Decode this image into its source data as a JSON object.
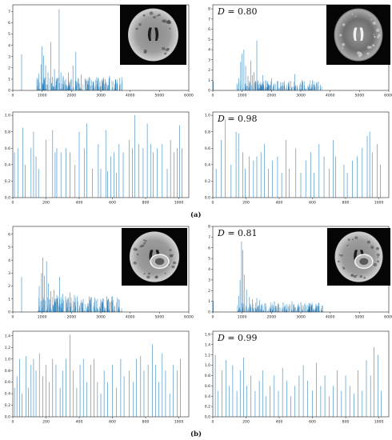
{
  "figure_labels": {
    "a": "(a)",
    "b": "(b)"
  },
  "d_prefix": "D",
  "d_equals": " = ",
  "chart_data": [
    {
      "id": "a-top-left",
      "type": "bar",
      "xlim": [
        0,
        6000
      ],
      "ylim": [
        0,
        7.6
      ],
      "xticks": [
        "0",
        "1000",
        "2000",
        "3000",
        "4000",
        "5000",
        "6000"
      ],
      "yticks": [
        "0",
        "1",
        "2",
        "3",
        "4",
        "5",
        "6",
        "7"
      ],
      "d_value": "",
      "image": "mri-flair-axial",
      "spikes": [
        [
          300,
          3.2
        ],
        [
          880,
          1.5
        ],
        [
          960,
          2.3
        ],
        [
          1000,
          3.9
        ],
        [
          1050,
          3.1
        ],
        [
          1120,
          2.2
        ],
        [
          1200,
          1.6
        ],
        [
          1300,
          4.3
        ],
        [
          1350,
          1.2
        ],
        [
          1420,
          1.9
        ],
        [
          1500,
          1.1
        ],
        [
          1580,
          7.2
        ],
        [
          1640,
          1.6
        ],
        [
          1720,
          1.3
        ],
        [
          1800,
          1.0
        ],
        [
          1900,
          1.6
        ],
        [
          2050,
          2.2
        ],
        [
          2150,
          3.4
        ],
        [
          2230,
          1.1
        ],
        [
          2330,
          1.4
        ],
        [
          2500,
          0.9
        ],
        [
          2600,
          1.2
        ],
        [
          2750,
          0.8
        ],
        [
          2900,
          1.0
        ],
        [
          3150,
          1.0
        ],
        [
          3300,
          1.3
        ],
        [
          3500,
          1.0
        ],
        [
          3650,
          1.1
        ]
      ],
      "dense": {
        "range": [
          800,
          3750
        ],
        "count": 230,
        "max": 1.2,
        "seed": 11
      }
    },
    {
      "id": "a-top-right",
      "type": "bar",
      "xlim": [
        0,
        6000
      ],
      "ylim": [
        0,
        8.4
      ],
      "xticks": [
        "0",
        "1000",
        "2000",
        "3000",
        "4000",
        "5000",
        "6000"
      ],
      "yticks": [
        "0",
        "1",
        "2",
        "3",
        "4",
        "5",
        "6",
        "7",
        "8"
      ],
      "d_value": "0.80",
      "image": "mri-t2-axial",
      "spikes": [
        [
          20,
          0.9
        ],
        [
          880,
          1.2
        ],
        [
          950,
          2.8
        ],
        [
          1000,
          3.6
        ],
        [
          1060,
          4.0
        ],
        [
          1120,
          2.4
        ],
        [
          1200,
          1.4
        ],
        [
          1300,
          2.9
        ],
        [
          1350,
          1.5
        ],
        [
          1400,
          1.8
        ],
        [
          1500,
          4.9
        ],
        [
          1550,
          1.0
        ],
        [
          1700,
          1.5
        ],
        [
          1800,
          1.0
        ],
        [
          2000,
          1.2
        ],
        [
          2200,
          0.9
        ],
        [
          2400,
          0.8
        ],
        [
          2800,
          1.6
        ],
        [
          3050,
          1.0
        ],
        [
          3400,
          1.0
        ],
        [
          3600,
          0.9
        ]
      ],
      "dense": {
        "range": [
          800,
          3750
        ],
        "count": 230,
        "max": 1.0,
        "seed": 23
      }
    },
    {
      "id": "a-bottom-left",
      "type": "bar",
      "xlim": [
        0,
        1060
      ],
      "ylim": [
        0,
        1.04
      ],
      "xticks": [
        "0",
        "200",
        "400",
        "600",
        "800",
        "1000"
      ],
      "yticks": [
        "0.0",
        "0.2",
        "0.4",
        "0.6",
        "0.8",
        "1.0"
      ],
      "d_value": "",
      "image": "",
      "spikes": [
        [
          10,
          0.55
        ],
        [
          30,
          0.6
        ],
        [
          60,
          0.85
        ],
        [
          75,
          0.4
        ],
        [
          110,
          0.6
        ],
        [
          125,
          0.8
        ],
        [
          140,
          0.5
        ],
        [
          155,
          0.35
        ],
        [
          200,
          0.7
        ],
        [
          240,
          0.82
        ],
        [
          255,
          0.55
        ],
        [
          265,
          0.6
        ],
        [
          290,
          0.55
        ],
        [
          320,
          0.6
        ],
        [
          345,
          0.55
        ],
        [
          375,
          0.4
        ],
        [
          400,
          0.8
        ],
        [
          430,
          0.6
        ],
        [
          445,
          0.9
        ],
        [
          480,
          0.35
        ],
        [
          515,
          0.65
        ],
        [
          530,
          0.35
        ],
        [
          560,
          0.82
        ],
        [
          570,
          0.32
        ],
        [
          590,
          0.5
        ],
        [
          610,
          0.55
        ],
        [
          625,
          0.3
        ],
        [
          640,
          0.65
        ],
        [
          665,
          0.55
        ],
        [
          700,
          0.7
        ],
        [
          720,
          0.6
        ],
        [
          735,
          1.0
        ],
        [
          760,
          0.65
        ],
        [
          785,
          0.6
        ],
        [
          810,
          0.9
        ],
        [
          830,
          0.65
        ],
        [
          845,
          0.55
        ],
        [
          870,
          0.6
        ],
        [
          900,
          0.65
        ],
        [
          930,
          0.35
        ],
        [
          950,
          0.7
        ],
        [
          970,
          0.55
        ],
        [
          990,
          0.6
        ],
        [
          1005,
          0.88
        ],
        [
          1020,
          0.6
        ]
      ],
      "dense": {
        "range": [
          0,
          1030
        ],
        "count": 0,
        "max": 0,
        "seed": 1
      }
    },
    {
      "id": "a-bottom-right",
      "type": "bar",
      "xlim": [
        0,
        1060
      ],
      "ylim": [
        0,
        1.04
      ],
      "xticks": [
        "0",
        "200",
        "400",
        "600",
        "800",
        "1000"
      ],
      "yticks": [
        "0.0",
        "0.2",
        "0.4",
        "0.6",
        "0.8",
        "1.0"
      ],
      "d_value": "0.98",
      "image": "",
      "spikes": [
        [
          20,
          0.35
        ],
        [
          50,
          0.7
        ],
        [
          75,
          0.95
        ],
        [
          110,
          0.4
        ],
        [
          140,
          0.8
        ],
        [
          155,
          0.78
        ],
        [
          180,
          0.55
        ],
        [
          195,
          0.35
        ],
        [
          220,
          0.5
        ],
        [
          245,
          0.45
        ],
        [
          265,
          0.5
        ],
        [
          290,
          0.55
        ],
        [
          310,
          0.65
        ],
        [
          335,
          0.35
        ],
        [
          360,
          0.45
        ],
        [
          390,
          0.5
        ],
        [
          415,
          0.3
        ],
        [
          440,
          0.7
        ],
        [
          460,
          0.35
        ],
        [
          500,
          0.6
        ],
        [
          530,
          0.3
        ],
        [
          560,
          0.45
        ],
        [
          590,
          0.55
        ],
        [
          610,
          0.3
        ],
        [
          640,
          0.65
        ],
        [
          670,
          0.5
        ],
        [
          700,
          0.35
        ],
        [
          725,
          0.7
        ],
        [
          740,
          0.5
        ],
        [
          790,
          0.4
        ],
        [
          810,
          0.3
        ],
        [
          840,
          0.45
        ],
        [
          870,
          0.5
        ],
        [
          900,
          0.6
        ],
        [
          930,
          0.75
        ],
        [
          945,
          0.8
        ],
        [
          960,
          0.55
        ],
        [
          990,
          0.65
        ],
        [
          1010,
          0.4
        ]
      ],
      "dense": {
        "range": [
          0,
          1030
        ],
        "count": 0,
        "max": 0,
        "seed": 2
      }
    },
    {
      "id": "b-top-left",
      "type": "bar",
      "xlim": [
        0,
        6000
      ],
      "ylim": [
        0,
        6.6
      ],
      "xticks": [
        "0",
        "1000",
        "2000",
        "3000",
        "4000",
        "5000",
        "6000"
      ],
      "yticks": [
        "0",
        "1",
        "2",
        "3",
        "4",
        "5",
        "6"
      ],
      "d_value": "",
      "image": "mri-t1-contrast-tumor",
      "spikes": [
        [
          300,
          2.7
        ],
        [
          900,
          2.0
        ],
        [
          980,
          3.0
        ],
        [
          1020,
          4.2
        ],
        [
          1080,
          2.8
        ],
        [
          1150,
          3.9
        ],
        [
          1220,
          2.2
        ],
        [
          1300,
          1.6
        ],
        [
          1400,
          1.7
        ],
        [
          1500,
          1.3
        ],
        [
          1600,
          2.7
        ],
        [
          1700,
          1.4
        ],
        [
          1800,
          1.2
        ],
        [
          1950,
          1.5
        ],
        [
          2100,
          1.3
        ],
        [
          2200,
          1.2
        ],
        [
          2400,
          1.0
        ],
        [
          2600,
          1.2
        ],
        [
          2800,
          1.1
        ],
        [
          3000,
          1.0
        ],
        [
          3200,
          1.2
        ],
        [
          3400,
          1.2
        ],
        [
          3600,
          1.0
        ]
      ],
      "dense": {
        "range": [
          800,
          3750
        ],
        "count": 240,
        "max": 1.2,
        "seed": 37
      }
    },
    {
      "id": "b-top-right",
      "type": "bar",
      "xlim": [
        0,
        6000
      ],
      "ylim": [
        0,
        8.0
      ],
      "xticks": [
        "0",
        "1000",
        "2000",
        "3000",
        "4000",
        "5000",
        "6000"
      ],
      "yticks": [
        "0",
        "1",
        "2",
        "3",
        "4",
        "5",
        "6",
        "7",
        "8"
      ],
      "d_value": "0.81",
      "image": "mri-t1-contrast-tumor",
      "spikes": [
        [
          20,
          1.0
        ],
        [
          880,
          1.5
        ],
        [
          930,
          3.0
        ],
        [
          980,
          6.6
        ],
        [
          1020,
          5.8
        ],
        [
          1070,
          3.5
        ],
        [
          1150,
          2.1
        ],
        [
          1250,
          1.4
        ],
        [
          1350,
          1.2
        ],
        [
          1500,
          1.3
        ],
        [
          1600,
          1.1
        ],
        [
          1800,
          0.8
        ],
        [
          2100,
          1.0
        ],
        [
          2400,
          0.9
        ],
        [
          2700,
          1.0
        ],
        [
          3000,
          0.9
        ],
        [
          3300,
          0.8
        ],
        [
          3600,
          0.8
        ]
      ],
      "dense": {
        "range": [
          800,
          3750
        ],
        "count": 240,
        "max": 0.9,
        "seed": 41
      }
    },
    {
      "id": "b-bottom-left",
      "type": "bar",
      "xlim": [
        0,
        1060
      ],
      "ylim": [
        0,
        1.48
      ],
      "xticks": [
        "0",
        "200",
        "400",
        "600",
        "800",
        "1000"
      ],
      "yticks": [
        "0.0",
        "0.2",
        "0.4",
        "0.6",
        "0.8",
        "1.0",
        "1.2",
        "1.4"
      ],
      "d_value": "",
      "image": "",
      "spikes": [
        [
          10,
          0.5
        ],
        [
          25,
          0.7
        ],
        [
          40,
          1.0
        ],
        [
          55,
          0.4
        ],
        [
          80,
          1.05
        ],
        [
          95,
          0.5
        ],
        [
          110,
          0.9
        ],
        [
          125,
          1.0
        ],
        [
          140,
          0.8
        ],
        [
          160,
          1.1
        ],
        [
          180,
          0.7
        ],
        [
          200,
          0.9
        ],
        [
          220,
          0.6
        ],
        [
          240,
          1.0
        ],
        [
          260,
          0.9
        ],
        [
          285,
          0.5
        ],
        [
          300,
          0.8
        ],
        [
          320,
          1.0
        ],
        [
          345,
          1.42
        ],
        [
          365,
          0.8
        ],
        [
          385,
          0.5
        ],
        [
          405,
          0.9
        ],
        [
          425,
          1.0
        ],
        [
          445,
          0.6
        ],
        [
          470,
          0.9
        ],
        [
          490,
          1.0
        ],
        [
          510,
          0.6
        ],
        [
          530,
          0.4
        ],
        [
          550,
          0.8
        ],
        [
          570,
          0.6
        ],
        [
          600,
          0.9
        ],
        [
          625,
          0.5
        ],
        [
          650,
          1.0
        ],
        [
          670,
          0.7
        ],
        [
          700,
          0.8
        ],
        [
          725,
          0.6
        ],
        [
          745,
          1.0
        ],
        [
          770,
          1.05
        ],
        [
          790,
          0.8
        ],
        [
          815,
          0.9
        ],
        [
          840,
          1.25
        ],
        [
          860,
          0.9
        ],
        [
          880,
          0.6
        ],
        [
          900,
          1.1
        ],
        [
          920,
          0.8
        ],
        [
          945,
          0.4
        ],
        [
          965,
          0.9
        ],
        [
          990,
          0.8
        ],
        [
          1010,
          1.0
        ]
      ],
      "dense": {
        "range": [
          0,
          1030
        ],
        "count": 0,
        "max": 0,
        "seed": 3
      }
    },
    {
      "id": "b-bottom-right",
      "type": "bar",
      "xlim": [
        0,
        1060
      ],
      "ylim": [
        0,
        1.66
      ],
      "xticks": [
        "0",
        "200",
        "400",
        "600",
        "800",
        "1000"
      ],
      "yticks": [
        "0.0",
        "0.2",
        "0.4",
        "0.6",
        "0.8",
        "1.0",
        "1.2",
        "1.4",
        "1.6"
      ],
      "d_value": "0.99",
      "image": "",
      "spikes": [
        [
          15,
          1.2
        ],
        [
          30,
          0.5
        ],
        [
          55,
          0.9
        ],
        [
          80,
          1.1
        ],
        [
          100,
          0.6
        ],
        [
          120,
          1.0
        ],
        [
          145,
          0.5
        ],
        [
          165,
          0.9
        ],
        [
          185,
          1.15
        ],
        [
          205,
          0.6
        ],
        [
          230,
          0.8
        ],
        [
          255,
          0.5
        ],
        [
          280,
          0.7
        ],
        [
          300,
          0.9
        ],
        [
          320,
          0.4
        ],
        [
          345,
          0.6
        ],
        [
          370,
          0.8
        ],
        [
          395,
          0.5
        ],
        [
          420,
          0.95
        ],
        [
          445,
          0.7
        ],
        [
          470,
          0.4
        ],
        [
          495,
          0.6
        ],
        [
          520,
          0.8
        ],
        [
          545,
          1.0
        ],
        [
          570,
          0.7
        ],
        [
          600,
          0.5
        ],
        [
          625,
          1.05
        ],
        [
          650,
          0.6
        ],
        [
          675,
          0.8
        ],
        [
          700,
          0.4
        ],
        [
          725,
          0.6
        ],
        [
          750,
          0.9
        ],
        [
          775,
          0.5
        ],
        [
          800,
          0.8
        ],
        [
          825,
          0.6
        ],
        [
          850,
          0.45
        ],
        [
          875,
          0.9
        ],
        [
          900,
          0.5
        ],
        [
          925,
          1.1
        ],
        [
          950,
          0.8
        ],
        [
          970,
          1.35
        ],
        [
          995,
          1.2
        ],
        [
          1015,
          0.5
        ]
      ],
      "dense": {
        "range": [
          0,
          1030
        ],
        "count": 0,
        "max": 0,
        "seed": 4
      }
    }
  ]
}
